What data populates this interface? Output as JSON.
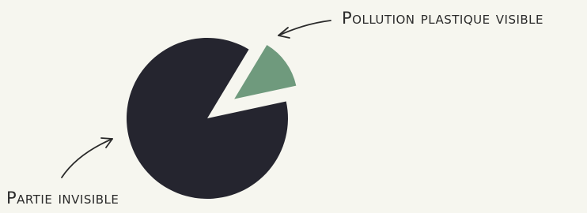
{
  "chart_data": {
    "type": "pie",
    "categories": [
      "Pollution plastique visible",
      "Partie invisible"
    ],
    "values": [
      13,
      87
    ],
    "colors": [
      "#6f9a7d",
      "#25252f"
    ]
  }
}
